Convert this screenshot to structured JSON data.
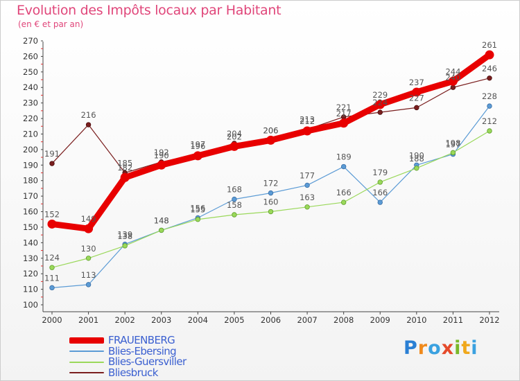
{
  "title": "Evolution des Impôts locaux par Habitant",
  "subtitle": "(en € et par an)",
  "brand": {
    "letters": [
      "P",
      "r",
      "o",
      "x",
      "i",
      "t",
      "i"
    ],
    "colors": [
      "#2a7fd4",
      "#f08a1c",
      "#3aa1e0",
      "#e54a2a",
      "#7ab82a",
      "#f0a81c",
      "#3aa1e0"
    ]
  },
  "chart_data": {
    "type": "line",
    "title": "Evolution des Impôts locaux par Habitant",
    "subtitle": "(en € et par an)",
    "xlabel": "",
    "ylabel": "",
    "x": [
      "2000",
      "2001",
      "2002",
      "2003",
      "2004",
      "2005",
      "2006",
      "2007",
      "2008",
      "2009",
      "2010",
      "2011",
      "2012"
    ],
    "ylim": [
      100,
      270
    ],
    "yticks": [
      100,
      110,
      120,
      130,
      140,
      150,
      160,
      170,
      180,
      190,
      200,
      210,
      220,
      230,
      240,
      250,
      260,
      270
    ],
    "grid": false,
    "legend": "bottom-left",
    "series": [
      {
        "name": "FRAUENBERG",
        "color": "#e80000",
        "values": [
          152,
          149,
          182,
          190,
          196,
          202,
          206,
          212,
          217,
          229,
          237,
          244,
          261
        ]
      },
      {
        "name": "Blies-Ebersing",
        "color": "#5b9bd5",
        "values": [
          111,
          113,
          139,
          148,
          156,
          168,
          172,
          177,
          189,
          166,
          190,
          197,
          228
        ]
      },
      {
        "name": "Blies-Guersviller",
        "color": "#9ad85a",
        "values": [
          124,
          130,
          138,
          148,
          155,
          158,
          160,
          163,
          166,
          179,
          188,
          198,
          212
        ]
      },
      {
        "name": "Bliesbruck",
        "color": "#7a1e1e",
        "values": [
          191,
          216,
          185,
          192,
          197,
          204,
          206,
          213,
          221,
          224,
          227,
          240,
          246
        ]
      }
    ],
    "labels": [
      {
        "series": 0,
        "text": [
          "152",
          "149",
          "182",
          "190",
          "196",
          "202",
          "206",
          "212",
          "217",
          "229",
          "237",
          "244",
          "261"
        ]
      },
      {
        "series": 1,
        "text": [
          "111",
          "113",
          "139",
          "148",
          "156",
          "168",
          "172",
          "177",
          "189",
          "166",
          "190",
          "197",
          "228"
        ]
      },
      {
        "series": 2,
        "text": [
          "124",
          "130",
          "138",
          "148",
          "155",
          "158",
          "160",
          "163",
          "166",
          "179",
          "188",
          "198",
          "212"
        ]
      },
      {
        "series": 3,
        "text": [
          "191",
          "216",
          "185",
          "192",
          "197",
          "204",
          "206",
          "213",
          "221",
          "224",
          "227",
          "240",
          "246"
        ]
      }
    ]
  }
}
